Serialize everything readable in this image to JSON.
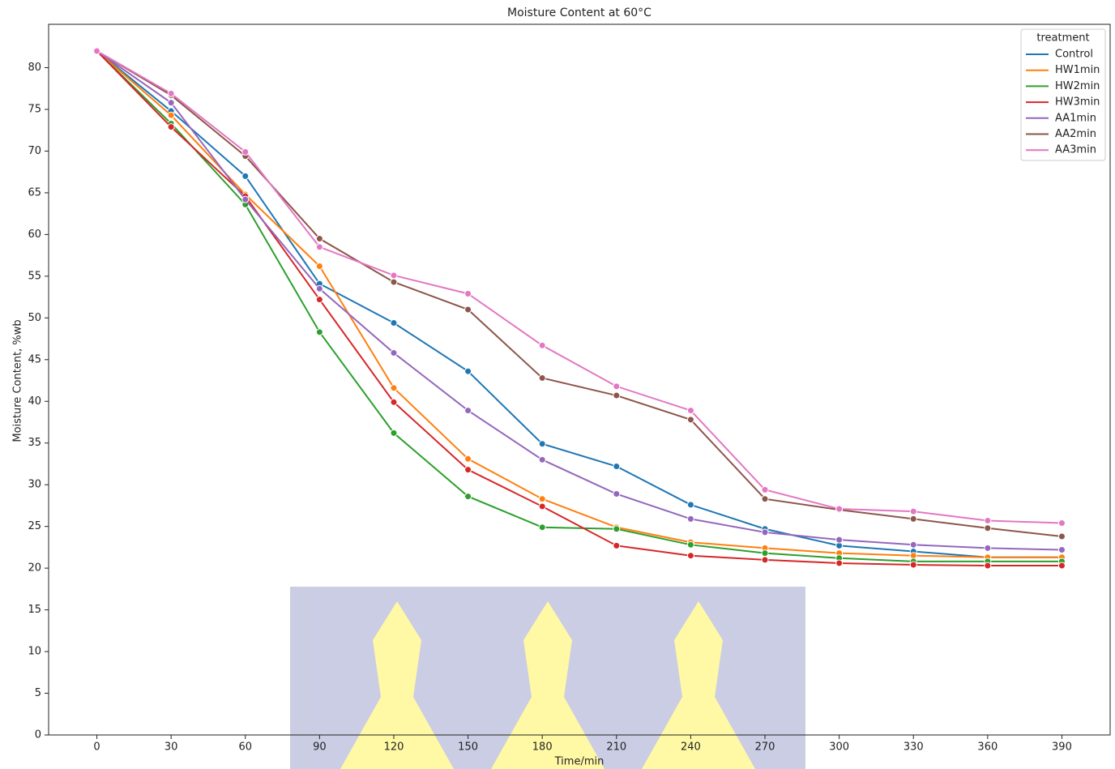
{
  "chart_data": {
    "type": "line",
    "title": "Moisture Content at 60°C",
    "x_label": "Time/min",
    "y_label": "Moisture Content, %wb",
    "x": [
      0,
      30,
      60,
      90,
      120,
      150,
      180,
      210,
      240,
      270,
      300,
      330,
      360,
      390
    ],
    "xlim": [
      -19.5,
      409.5
    ],
    "ylim": [
      0,
      85.2
    ],
    "xticks": [
      0,
      30,
      60,
      90,
      120,
      150,
      180,
      210,
      240,
      270,
      300,
      330,
      360,
      390
    ],
    "yticks": [
      0,
      5,
      10,
      15,
      20,
      25,
      30,
      35,
      40,
      45,
      50,
      55,
      60,
      65,
      70,
      75,
      80
    ],
    "grid": false,
    "legend_title": "treatment",
    "legend_position": "upper right",
    "series": [
      {
        "name": "Control",
        "color": "#1f77b4",
        "values": [
          82,
          74.8,
          67,
          54.1,
          49.4,
          43.6,
          34.9,
          32.2,
          27.6,
          24.7,
          22.7,
          22.0,
          21.3,
          21.3
        ]
      },
      {
        "name": "HW1min",
        "color": "#ff7f0e",
        "values": [
          82,
          74.3,
          64.8,
          56.2,
          41.6,
          33.1,
          28.3,
          24.9,
          23.1,
          22.4,
          21.8,
          21.5,
          21.3,
          21.3
        ]
      },
      {
        "name": "HW2min",
        "color": "#2ca02c",
        "values": [
          82,
          73.3,
          63.6,
          48.3,
          36.2,
          28.6,
          24.9,
          24.7,
          22.8,
          21.8,
          21.2,
          20.8,
          20.8,
          20.8
        ]
      },
      {
        "name": "HW3min",
        "color": "#d62728",
        "values": [
          82,
          72.9,
          64.6,
          52.2,
          39.9,
          31.8,
          27.4,
          22.7,
          21.5,
          21.0,
          20.6,
          20.4,
          20.3,
          20.3
        ]
      },
      {
        "name": "AA1min",
        "color": "#9467bd",
        "values": [
          82,
          75.8,
          64.2,
          53.5,
          45.8,
          38.9,
          33.0,
          28.9,
          25.9,
          24.3,
          23.4,
          22.8,
          22.4,
          22.2
        ]
      },
      {
        "name": "AA2min",
        "color": "#8c564b",
        "values": [
          82,
          76.7,
          69.4,
          59.5,
          54.3,
          51.0,
          42.8,
          40.7,
          37.8,
          28.3,
          27.0,
          25.9,
          24.8,
          23.8
        ]
      },
      {
        "name": "AA3min",
        "color": "#e377c2",
        "values": [
          82,
          76.9,
          69.9,
          58.5,
          55.1,
          52.9,
          46.7,
          41.8,
          38.9,
          29.4,
          27.1,
          26.8,
          25.7,
          25.4
        ]
      }
    ]
  }
}
